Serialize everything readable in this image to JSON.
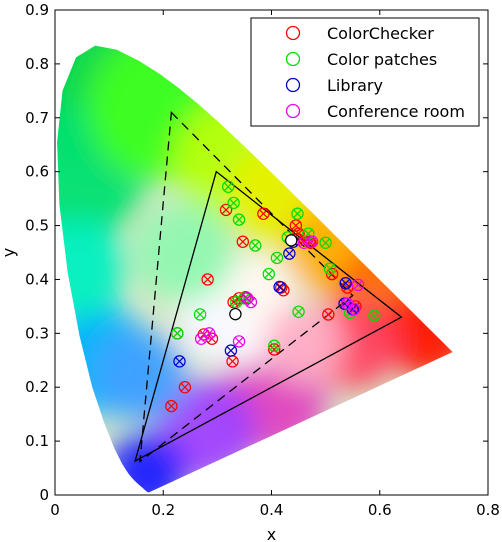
{
  "chart_data": {
    "type": "scatter",
    "title": "",
    "xlabel": "x",
    "ylabel": "y",
    "xlim": [
      0,
      0.8
    ],
    "ylim": [
      0,
      0.9
    ],
    "xticks": [
      "0",
      "0.2",
      "0.4",
      "0.6",
      "0.8"
    ],
    "yticks": [
      "0",
      "0.1",
      "0.2",
      "0.3",
      "0.4",
      "0.5",
      "0.6",
      "0.7",
      "0.8",
      "0.9"
    ],
    "xtick_values": [
      0,
      0.2,
      0.4,
      0.6,
      0.8
    ],
    "ytick_values": [
      0,
      0.1,
      0.2,
      0.3,
      0.4,
      0.5,
      0.6,
      0.7,
      0.8,
      0.9
    ],
    "grid": false,
    "legend_position": "top-right",
    "background": "CIE 1931 chromaticity diagram (spectral locus gamut)",
    "locus": [
      [
        0.1741,
        0.005
      ],
      [
        0.174,
        0.005
      ],
      [
        0.1736,
        0.0049
      ],
      [
        0.173,
        0.0048
      ],
      [
        0.1721,
        0.0048
      ],
      [
        0.1714,
        0.0051
      ],
      [
        0.1703,
        0.0058
      ],
      [
        0.1689,
        0.0069
      ],
      [
        0.1669,
        0.0086
      ],
      [
        0.1644,
        0.0109
      ],
      [
        0.1611,
        0.0138
      ],
      [
        0.1566,
        0.0177
      ],
      [
        0.151,
        0.0227
      ],
      [
        0.144,
        0.0297
      ],
      [
        0.1355,
        0.0399
      ],
      [
        0.1241,
        0.0578
      ],
      [
        0.1096,
        0.0868
      ],
      [
        0.0913,
        0.1327
      ],
      [
        0.0687,
        0.2007
      ],
      [
        0.0454,
        0.295
      ],
      [
        0.0235,
        0.4127
      ],
      [
        0.0082,
        0.5384
      ],
      [
        0.0039,
        0.6548
      ],
      [
        0.0139,
        0.7502
      ],
      [
        0.0389,
        0.812
      ],
      [
        0.0743,
        0.8338
      ],
      [
        0.1142,
        0.8262
      ],
      [
        0.1547,
        0.8059
      ],
      [
        0.1929,
        0.7816
      ],
      [
        0.2296,
        0.7543
      ],
      [
        0.2658,
        0.7243
      ],
      [
        0.3016,
        0.6923
      ],
      [
        0.3373,
        0.6589
      ],
      [
        0.3731,
        0.6245
      ],
      [
        0.4087,
        0.5896
      ],
      [
        0.4441,
        0.5547
      ],
      [
        0.4788,
        0.5202
      ],
      [
        0.5125,
        0.4866
      ],
      [
        0.5448,
        0.4544
      ],
      [
        0.5752,
        0.4242
      ],
      [
        0.6029,
        0.3965
      ],
      [
        0.627,
        0.3725
      ],
      [
        0.6482,
        0.3514
      ],
      [
        0.6658,
        0.334
      ],
      [
        0.6801,
        0.3197
      ],
      [
        0.6915,
        0.3083
      ],
      [
        0.7006,
        0.2993
      ],
      [
        0.7079,
        0.292
      ],
      [
        0.714,
        0.2859
      ],
      [
        0.719,
        0.2809
      ],
      [
        0.723,
        0.277
      ],
      [
        0.726,
        0.274
      ],
      [
        0.7283,
        0.2717
      ],
      [
        0.73,
        0.27
      ],
      [
        0.7311,
        0.2689
      ],
      [
        0.732,
        0.268
      ],
      [
        0.7327,
        0.2673
      ],
      [
        0.7334,
        0.2666
      ],
      [
        0.734,
        0.266
      ],
      [
        0.7344,
        0.2656
      ],
      [
        0.7346,
        0.2654
      ],
      [
        0.7347,
        0.2653
      ]
    ],
    "triangles": [
      {
        "style": "solid",
        "points": [
          [
            0.298,
            0.6
          ],
          [
            0.64,
            0.33
          ],
          [
            0.148,
            0.063
          ]
        ]
      },
      {
        "style": "dashed",
        "points": [
          [
            0.215,
            0.71
          ],
          [
            0.55,
            0.37
          ],
          [
            0.157,
            0.062
          ]
        ]
      }
    ],
    "white_points": [
      [
        0.4365,
        0.4725
      ],
      [
        0.3333,
        0.3356
      ]
    ],
    "series": [
      {
        "name": "ColorChecker",
        "color": "#ff0000",
        "marker": "circle-x",
        "values": [
          [
            0.215,
            0.165
          ],
          [
            0.24,
            0.2
          ],
          [
            0.226,
            0.3
          ],
          [
            0.275,
            0.298
          ],
          [
            0.29,
            0.29
          ],
          [
            0.328,
            0.248
          ],
          [
            0.316,
            0.529
          ],
          [
            0.347,
            0.47
          ],
          [
            0.385,
            0.522
          ],
          [
            0.282,
            0.4
          ],
          [
            0.33,
            0.358
          ],
          [
            0.34,
            0.365
          ],
          [
            0.405,
            0.27
          ],
          [
            0.418,
            0.385
          ],
          [
            0.422,
            0.38
          ],
          [
            0.445,
            0.5
          ],
          [
            0.45,
            0.485
          ],
          [
            0.47,
            0.47
          ],
          [
            0.512,
            0.41
          ],
          [
            0.54,
            0.385
          ],
          [
            0.555,
            0.35
          ],
          [
            0.505,
            0.335
          ],
          [
            0.448,
            0.475
          ],
          [
            0.472,
            0.468
          ],
          [
            0.352,
            0.367
          ]
        ]
      },
      {
        "name": "Color patches",
        "color": "#00dd00",
        "marker": "circle-x",
        "values": [
          [
            0.32,
            0.572
          ],
          [
            0.33,
            0.542
          ],
          [
            0.34,
            0.511
          ],
          [
            0.37,
            0.463
          ],
          [
            0.395,
            0.41
          ],
          [
            0.41,
            0.44
          ],
          [
            0.43,
            0.478
          ],
          [
            0.448,
            0.522
          ],
          [
            0.468,
            0.485
          ],
          [
            0.5,
            0.468
          ],
          [
            0.508,
            0.42
          ],
          [
            0.545,
            0.338
          ],
          [
            0.59,
            0.333
          ],
          [
            0.45,
            0.34
          ],
          [
            0.405,
            0.277
          ],
          [
            0.268,
            0.335
          ],
          [
            0.226,
            0.3
          ],
          [
            0.335,
            0.358
          ],
          [
            0.35,
            0.365
          ]
        ]
      },
      {
        "name": "Library",
        "color": "#0000cc",
        "marker": "circle-x",
        "values": [
          [
            0.23,
            0.248
          ],
          [
            0.325,
            0.268
          ],
          [
            0.355,
            0.365
          ],
          [
            0.44,
            0.47
          ],
          [
            0.537,
            0.393
          ],
          [
            0.55,
            0.345
          ],
          [
            0.433,
            0.448
          ],
          [
            0.535,
            0.355
          ],
          [
            0.415,
            0.386
          ]
        ]
      },
      {
        "name": "Conference room",
        "color": "#ee00ee",
        "marker": "circle-x",
        "values": [
          [
            0.27,
            0.29
          ],
          [
            0.285,
            0.3
          ],
          [
            0.34,
            0.285
          ],
          [
            0.355,
            0.365
          ],
          [
            0.362,
            0.358
          ],
          [
            0.46,
            0.468
          ],
          [
            0.475,
            0.47
          ],
          [
            0.553,
            0.345
          ],
          [
            0.56,
            0.39
          ],
          [
            0.54,
            0.355
          ]
        ]
      }
    ]
  }
}
